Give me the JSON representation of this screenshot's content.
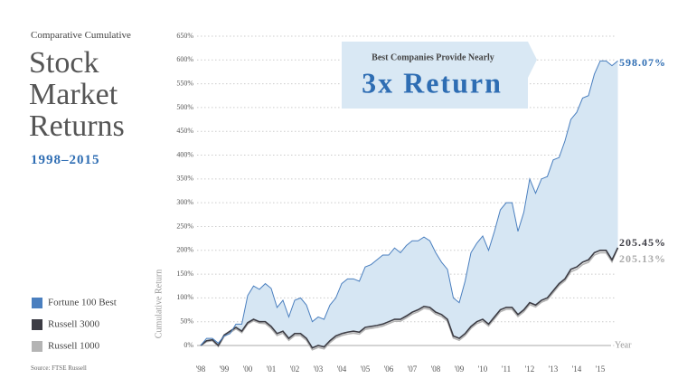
{
  "chart_data": {
    "type": "line",
    "supertitle": "Comparative Cumulative",
    "title": "Stock Market Returns",
    "subtitle": "1998–2015",
    "source": "Source: FTSE Russell",
    "ylabel": "Cumulative Return",
    "xlabel": "Year",
    "annotation": {
      "text": "Best Companies Provide Nearly",
      "headline": "3x Return"
    },
    "xlim": [
      1998,
      2016
    ],
    "ylim": [
      0,
      650
    ],
    "grid": true,
    "xticks": [
      {
        "value": 1998,
        "label": "'98"
      },
      {
        "value": 1999,
        "label": "'99"
      },
      {
        "value": 2000,
        "label": "'00"
      },
      {
        "value": 2001,
        "label": "'01"
      },
      {
        "value": 2002,
        "label": "'02"
      },
      {
        "value": 2003,
        "label": "'03"
      },
      {
        "value": 2004,
        "label": "'04"
      },
      {
        "value": 2005,
        "label": "'05"
      },
      {
        "value": 2006,
        "label": "'06"
      },
      {
        "value": 2007,
        "label": "'07"
      },
      {
        "value": 2008,
        "label": "'08"
      },
      {
        "value": 2009,
        "label": "'09"
      },
      {
        "value": 2010,
        "label": "'10"
      },
      {
        "value": 2011,
        "label": "'11"
      },
      {
        "value": 2012,
        "label": "'12"
      },
      {
        "value": 2013,
        "label": "'13"
      },
      {
        "value": 2014,
        "label": "'14"
      },
      {
        "value": 2015,
        "label": "'15"
      }
    ],
    "yticks": [
      {
        "value": 0,
        "label": "0%"
      },
      {
        "value": 50,
        "label": "50%"
      },
      {
        "value": 100,
        "label": "100%"
      },
      {
        "value": 150,
        "label": "150%"
      },
      {
        "value": 200,
        "label": "200%"
      },
      {
        "value": 250,
        "label": "250%"
      },
      {
        "value": 300,
        "label": "300%"
      },
      {
        "value": 350,
        "label": "350%"
      },
      {
        "value": 400,
        "label": "400%"
      },
      {
        "value": 450,
        "label": "450%"
      },
      {
        "value": 500,
        "label": "500%"
      },
      {
        "value": 550,
        "label": "550%"
      },
      {
        "value": 600,
        "label": "600%"
      },
      {
        "value": 650,
        "label": "650%"
      }
    ],
    "x": [
      1998,
      1998.25,
      1998.5,
      1998.75,
      1999,
      1999.25,
      1999.5,
      1999.75,
      2000,
      2000.25,
      2000.5,
      2000.75,
      2001,
      2001.25,
      2001.5,
      2001.75,
      2002,
      2002.25,
      2002.5,
      2002.75,
      2003,
      2003.25,
      2003.5,
      2003.75,
      2004,
      2004.25,
      2004.5,
      2004.75,
      2005,
      2005.25,
      2005.5,
      2005.75,
      2006,
      2006.25,
      2006.5,
      2006.75,
      2007,
      2007.25,
      2007.5,
      2007.75,
      2008,
      2008.25,
      2008.5,
      2008.75,
      2009,
      2009.25,
      2009.5,
      2009.75,
      2010,
      2010.25,
      2010.5,
      2010.75,
      2011,
      2011.25,
      2011.5,
      2011.75,
      2012,
      2012.25,
      2012.5,
      2012.75,
      2013,
      2013.25,
      2013.5,
      2013.75,
      2014,
      2014.25,
      2014.5,
      2014.75,
      2015,
      2015.25,
      2015.5,
      2015.75
    ],
    "series": [
      {
        "name": "Fortune 100 Best",
        "color": "#4a7fbf",
        "fill": "#d6e6f3",
        "end_label": "598.07%",
        "label_color": "#2e6db3",
        "values": [
          0,
          15,
          15,
          5,
          20,
          25,
          45,
          45,
          105,
          125,
          118,
          130,
          120,
          80,
          95,
          60,
          95,
          100,
          85,
          50,
          60,
          55,
          85,
          100,
          130,
          140,
          140,
          135,
          165,
          170,
          180,
          190,
          190,
          205,
          195,
          210,
          220,
          220,
          228,
          220,
          195,
          175,
          160,
          100,
          90,
          135,
          195,
          215,
          230,
          200,
          240,
          285,
          300,
          300,
          240,
          280,
          350,
          320,
          350,
          355,
          390,
          395,
          430,
          475,
          490,
          520,
          525,
          570,
          598,
          598,
          588,
          598.07
        ]
      },
      {
        "name": "Russell 3000",
        "color": "#3c3c44",
        "end_label": "205.45%",
        "label_color": "#3c3c44",
        "values": [
          0,
          10,
          12,
          0,
          22,
          30,
          38,
          30,
          48,
          55,
          50,
          50,
          40,
          25,
          30,
          15,
          25,
          25,
          15,
          -5,
          0,
          -3,
          10,
          20,
          25,
          28,
          30,
          28,
          38,
          40,
          42,
          45,
          50,
          55,
          55,
          62,
          70,
          75,
          82,
          80,
          70,
          65,
          55,
          20,
          15,
          25,
          40,
          50,
          55,
          45,
          60,
          75,
          80,
          80,
          65,
          75,
          90,
          85,
          95,
          100,
          115,
          130,
          140,
          160,
          165,
          175,
          180,
          195,
          200,
          200,
          180,
          205.45
        ]
      },
      {
        "name": "Russell 1000",
        "color": "#b4b4b4",
        "end_label": "205.13%",
        "label_color": "#aaaaaa",
        "values": [
          0,
          8,
          10,
          -2,
          19,
          27,
          35,
          27,
          45,
          52,
          47,
          46,
          36,
          21,
          26,
          11,
          21,
          21,
          11,
          -9,
          -4,
          -7,
          6,
          16,
          21,
          24,
          26,
          24,
          34,
          36,
          38,
          41,
          46,
          51,
          51,
          58,
          66,
          71,
          78,
          76,
          66,
          61,
          51,
          16,
          11,
          21,
          36,
          46,
          51,
          41,
          56,
          71,
          76,
          76,
          61,
          71,
          86,
          81,
          91,
          96,
          111,
          126,
          136,
          155,
          160,
          170,
          175,
          190,
          195,
          195,
          176,
          205.13
        ]
      }
    ]
  }
}
